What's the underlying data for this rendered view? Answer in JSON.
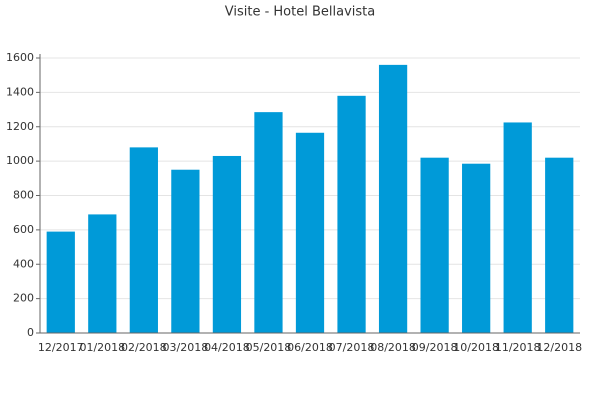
{
  "chart_data": {
    "type": "bar",
    "title": "Visite - Hotel Bellavista",
    "categories": [
      "12/2017",
      "01/2018",
      "02/2018",
      "03/2018",
      "04/2018",
      "05/2018",
      "06/2018",
      "07/2018",
      "08/2018",
      "09/2018",
      "10/2018",
      "11/2018",
      "12/2018"
    ],
    "values": [
      590,
      690,
      1080,
      950,
      1030,
      1285,
      1165,
      1380,
      1560,
      1020,
      985,
      1225,
      1020
    ],
    "color": "#009ad8",
    "ylim": [
      0,
      1600
    ],
    "yticks": [
      0,
      200,
      400,
      600,
      800,
      1000,
      1200,
      1400,
      1600
    ],
    "grid": true
  }
}
